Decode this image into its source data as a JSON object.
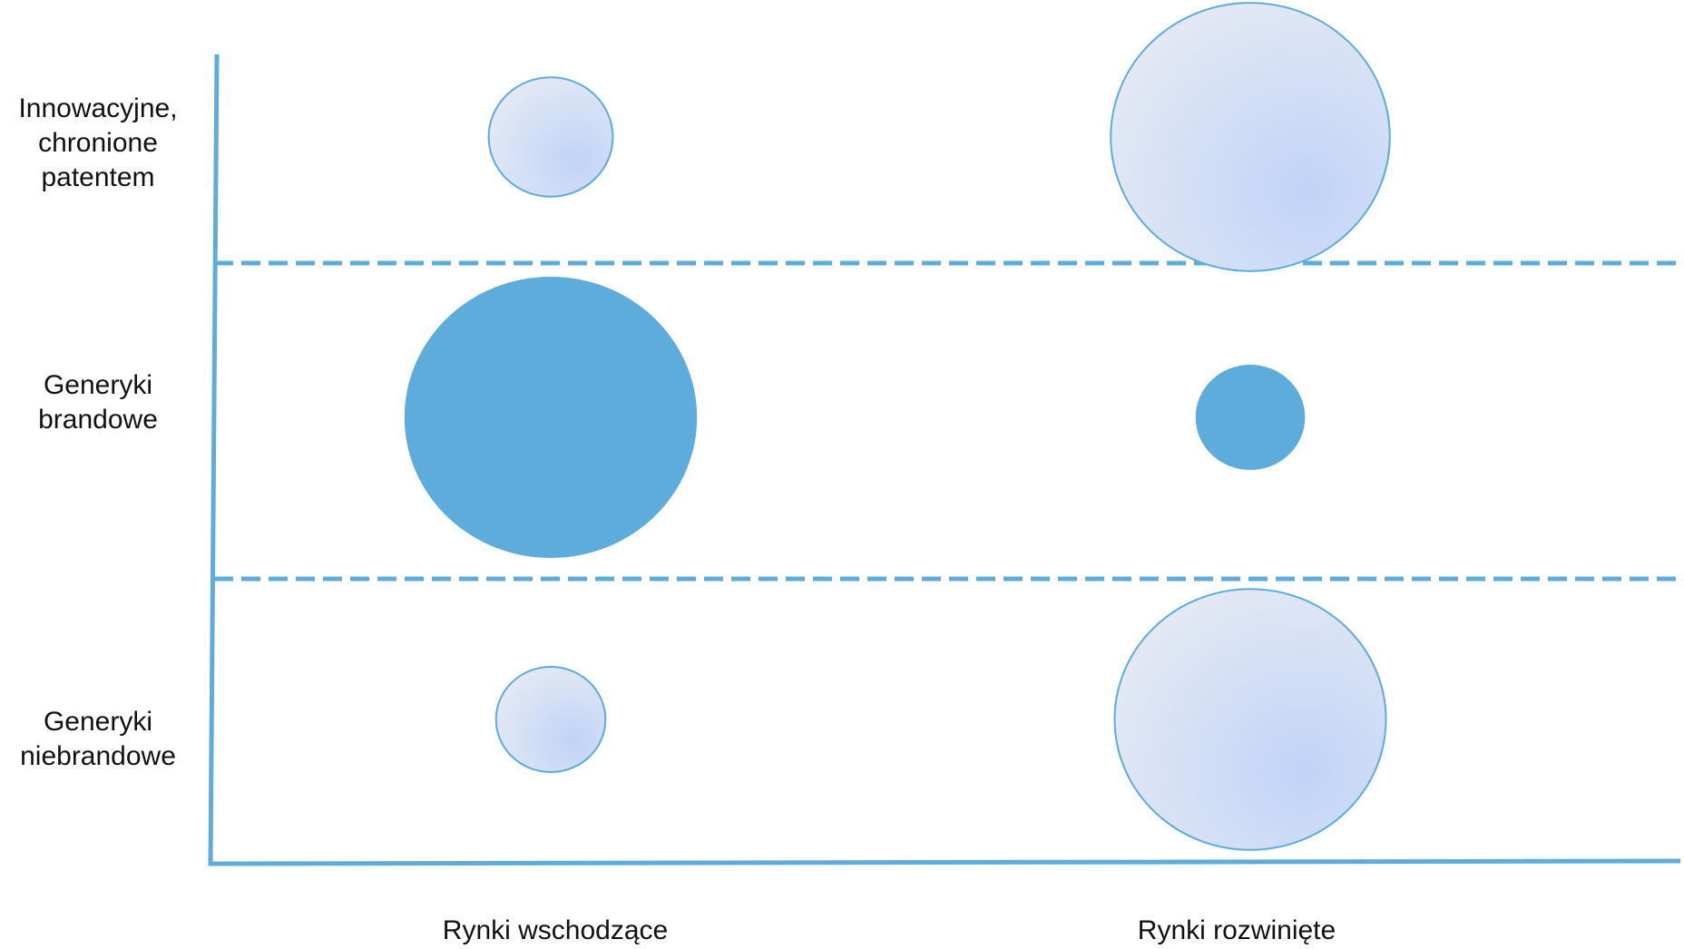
{
  "chart_data": {
    "type": "scatter",
    "title": "",
    "xlabel": "",
    "ylabel": "",
    "x_categories": [
      "Rynki wschodzące",
      "Rynki rozwinięte"
    ],
    "y_categories": [
      "Innowacyjne,\nchronione\npatentem",
      "Generyki\nbrandowe",
      "Generyki\nniebrandowe"
    ],
    "grid": "dashed separators between rows",
    "legend": "none",
    "points": [
      {
        "x": "Rynki wschodzące",
        "y": "Innowacyjne,\nchronione\npatentem",
        "size": 0.18,
        "style": "light"
      },
      {
        "x": "Rynki rozwinięte",
        "y": "Innowacyjne,\nchronione\npatentem",
        "size": 0.91,
        "style": "light"
      },
      {
        "x": "Rynki wschodzące",
        "y": "Generyki\nbrandowe",
        "size": 1.0,
        "style": "solid"
      },
      {
        "x": "Rynki rozwinięte",
        "y": "Generyki\nbrandowe",
        "size": 0.14,
        "style": "solid"
      },
      {
        "x": "Rynki wschodzące",
        "y": "Generyki\nniebrandowe",
        "size": 0.14,
        "style": "light"
      },
      {
        "x": "Rynki rozwinięte",
        "y": "Generyki\nniebrandowe",
        "size": 0.86,
        "style": "light"
      }
    ],
    "colors": {
      "axis": "#5dacdb",
      "solid_fill": "#5dacdb",
      "light_fill": "#dae5f5",
      "light_fill_center": "#c0d4f7",
      "light_stroke": "#5dacdb"
    }
  }
}
